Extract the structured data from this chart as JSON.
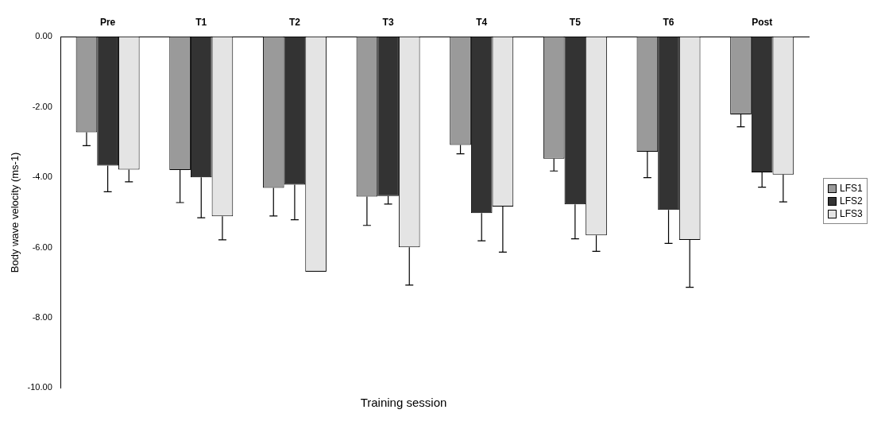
{
  "chart_data": {
    "type": "bar",
    "categories": [
      "Pre",
      "T1",
      "T2",
      "T3",
      "T4",
      "T5",
      "T6",
      "Post"
    ],
    "xlabel": "Training session",
    "ylabel": "Body wave velocity (ms-1)",
    "ylim": [
      -10,
      0
    ],
    "yticks": [
      {
        "value": -10,
        "label": "-10.00"
      },
      {
        "value": -8,
        "label": "-8.00"
      },
      {
        "value": -6,
        "label": "-6.00"
      },
      {
        "value": -4,
        "label": "-4.00"
      },
      {
        "value": -2,
        "label": "-2.00"
      },
      {
        "value": 0,
        "label": "0.00"
      }
    ],
    "grid": false,
    "legend": "right",
    "series": [
      {
        "name": "LFS1",
        "color": "#9a9a9a",
        "values": [
          -2.72,
          -3.79,
          -4.3,
          -4.55,
          -3.08,
          -3.47,
          -3.27,
          -2.21
        ],
        "errors": [
          [
            -3.1,
            -2.72
          ],
          [
            -4.72,
            -3.79
          ],
          [
            -5.1,
            -4.3
          ],
          [
            -5.37,
            -4.55
          ],
          [
            -3.33,
            -3.08
          ],
          [
            -3.82,
            -3.47
          ],
          [
            -4.01,
            -3.27
          ],
          [
            -2.56,
            -2.21
          ]
        ]
      },
      {
        "name": "LFS2",
        "color": "#333333",
        "values": [
          -3.67,
          -4.0,
          -4.21,
          -4.53,
          -5.02,
          -4.77,
          -4.93,
          -3.86
        ],
        "errors": [
          [
            -4.41,
            -3.67
          ],
          [
            -5.15,
            -4.0
          ],
          [
            -5.21,
            -4.21
          ],
          [
            -4.76,
            -4.53
          ],
          [
            -5.81,
            -5.02
          ],
          [
            -5.75,
            -4.77
          ],
          [
            -5.88,
            -4.93
          ],
          [
            -4.28,
            -3.86
          ]
        ]
      },
      {
        "name": "LFS3",
        "color": "#e4e4e4",
        "values": [
          -3.78,
          -5.11,
          -6.69,
          -5.99,
          -4.83,
          -5.65,
          -5.78,
          -3.92
        ],
        "errors": [
          [
            -4.13,
            -3.78
          ],
          [
            -5.78,
            -5.11
          ],
          null,
          [
            -7.07,
            -5.99
          ],
          [
            -6.13,
            -4.83
          ],
          [
            -6.11,
            -5.65
          ],
          [
            -7.13,
            -5.78
          ],
          [
            -4.7,
            -3.92
          ]
        ]
      }
    ]
  }
}
